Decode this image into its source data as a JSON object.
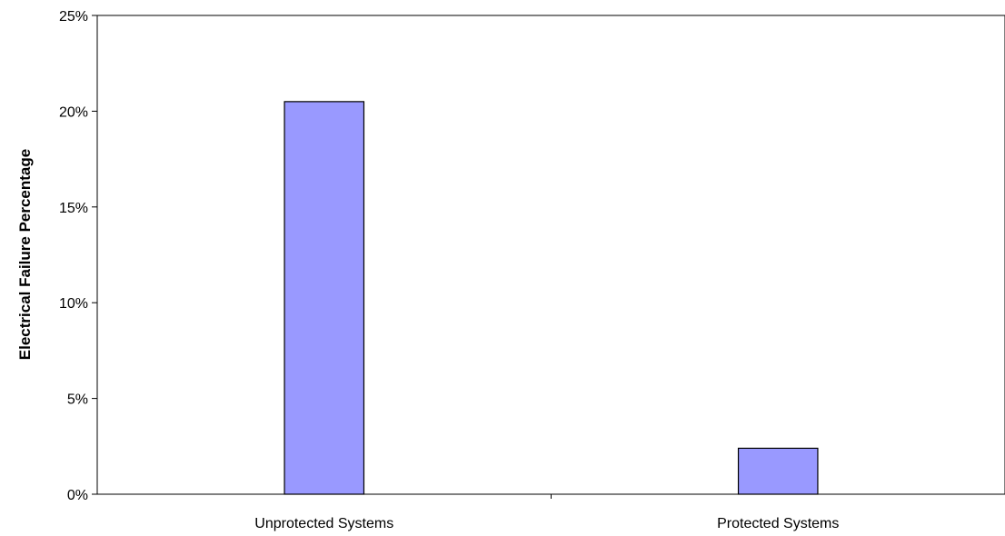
{
  "chart_data": {
    "type": "bar",
    "title": "",
    "xlabel": "",
    "ylabel": "Electrical Failure Percentage",
    "categories": [
      "Unprotected Systems",
      "Protected Systems"
    ],
    "values": [
      20.5,
      2.4
    ],
    "ylim": [
      0,
      25
    ],
    "yticks": [
      0,
      5,
      10,
      15,
      20,
      25
    ],
    "ytick_labels": [
      "0%",
      "5%",
      "10%",
      "15%",
      "20%",
      "25%"
    ],
    "value_format": "percent",
    "grid": false,
    "legend": "none",
    "colors": {
      "bar_fill": "#9999ff",
      "bar_stroke": "#000000",
      "axis": "#000000",
      "background": "#ffffff"
    }
  }
}
